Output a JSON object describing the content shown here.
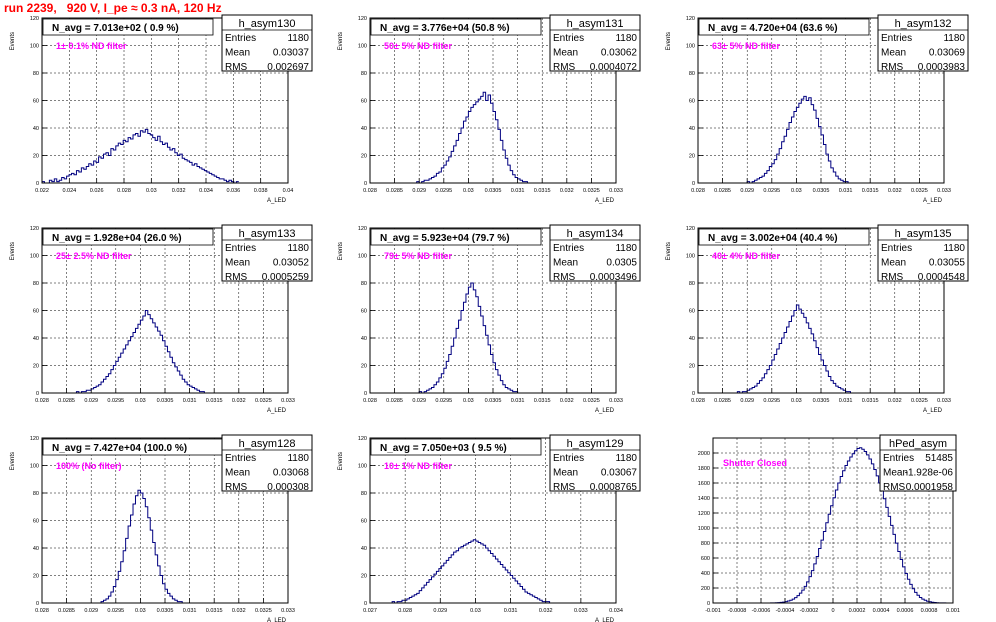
{
  "run_title": "run 2239,   920 V, I_pe ≈ 0.3 nA, 120 Hz",
  "colors": {
    "histogram": "#000080",
    "annotation": "#ff00ff",
    "title": "#ff0000",
    "grid": "#000000"
  },
  "stat_labels": {
    "entries": "Entries",
    "mean": "Mean",
    "rms": "RMS"
  },
  "chart_data": [
    {
      "type": "bar",
      "name": "h_asym130",
      "ylabel": "Events",
      "xlabel": "A_LED",
      "navg": "N_avg = 7.013e+02 ( 0.9 %)",
      "annotation": "1± 0.1% ND filter",
      "entries": "1180",
      "mean": "0.03037",
      "rms": "0.002697",
      "xlim": [
        0.022,
        0.04
      ],
      "xticks": [
        "0.022",
        "0.024",
        "0.026",
        "0.028",
        "0.03",
        "0.032",
        "0.034",
        "0.036",
        "0.038",
        "0.04"
      ],
      "ylim": [
        0,
        120
      ],
      "yticks": [
        "0",
        "20",
        "40",
        "60",
        "80",
        "100",
        "120"
      ],
      "bin_width": 0.00018,
      "values": [
        1,
        0,
        0,
        2,
        1,
        3,
        1,
        2,
        4,
        3,
        5,
        6,
        7,
        6,
        9,
        8,
        11,
        10,
        12,
        14,
        13,
        16,
        15,
        19,
        18,
        21,
        22,
        20,
        25,
        24,
        27,
        29,
        28,
        31,
        30,
        33,
        32,
        35,
        36,
        34,
        38,
        37,
        39,
        36,
        35,
        33,
        31,
        34,
        30,
        28,
        29,
        26,
        24,
        25,
        22,
        20,
        21,
        18,
        17,
        16,
        15,
        13,
        14,
        12,
        11,
        10,
        9,
        8,
        7,
        6,
        5,
        4,
        3,
        3,
        2,
        1,
        2,
        1,
        0,
        1
      ]
    },
    {
      "type": "bar",
      "name": "h_asym131",
      "ylabel": "Events",
      "xlabel": "A_LED",
      "navg": "N_avg = 3.776e+04 (50.8 %)",
      "annotation": "50± 5% ND filter",
      "entries": "1180",
      "mean": "0.03062",
      "rms": "0.0004072",
      "xlim": [
        0.028,
        0.033
      ],
      "xticks": [
        "0.028",
        "0.0285",
        "0.029",
        "0.0295",
        "0.03",
        "0.0305",
        "0.031",
        "0.0315",
        "0.032",
        "0.0325",
        "0.033"
      ],
      "ylim": [
        0,
        120
      ],
      "yticks": [
        "0",
        "20",
        "40",
        "60",
        "80",
        "100",
        "120"
      ],
      "bin_width": 5e-05,
      "values": [
        0,
        0,
        0,
        0,
        0,
        0,
        0,
        0,
        0,
        0,
        0,
        0,
        0,
        0,
        0,
        0,
        0,
        0,
        0,
        1,
        0,
        1,
        2,
        2,
        3,
        4,
        5,
        7,
        8,
        11,
        13,
        16,
        19,
        23,
        27,
        31,
        36,
        40,
        45,
        48,
        52,
        55,
        57,
        59,
        61,
        63,
        66,
        60,
        64,
        58,
        52,
        46,
        39,
        31,
        24,
        18,
        13,
        9,
        6,
        4,
        3,
        2,
        1,
        1,
        0,
        0,
        0,
        0,
        0,
        0,
        0,
        0,
        0,
        0,
        0,
        0,
        0,
        0,
        0,
        0,
        0,
        0,
        0,
        0,
        0,
        0,
        0,
        0,
        0,
        0,
        0,
        0,
        0,
        0,
        0,
        0,
        0,
        0,
        0,
        0
      ]
    },
    {
      "type": "bar",
      "name": "h_asym132",
      "ylabel": "Events",
      "xlabel": "A_LED",
      "navg": "N_avg = 4.720e+04 (63.6 %)",
      "annotation": "63± 5% ND filter",
      "entries": "1180",
      "mean": "0.03069",
      "rms": "0.0003983",
      "xlim": [
        0.028,
        0.033
      ],
      "xticks": [
        "0.028",
        "0.0285",
        "0.029",
        "0.0295",
        "0.03",
        "0.0305",
        "0.031",
        "0.0315",
        "0.032",
        "0.0325",
        "0.033"
      ],
      "ylim": [
        0,
        120
      ],
      "yticks": [
        "0",
        "20",
        "40",
        "60",
        "80",
        "100",
        "120"
      ],
      "bin_width": 5e-05,
      "values": [
        0,
        0,
        0,
        0,
        0,
        0,
        0,
        0,
        0,
        0,
        0,
        0,
        0,
        0,
        0,
        0,
        0,
        0,
        0,
        0,
        1,
        0,
        1,
        2,
        3,
        4,
        5,
        7,
        9,
        12,
        14,
        17,
        21,
        25,
        30,
        34,
        39,
        44,
        48,
        52,
        55,
        58,
        61,
        63,
        60,
        62,
        57,
        53,
        47,
        41,
        35,
        28,
        21,
        16,
        11,
        8,
        5,
        3,
        2,
        1,
        1,
        0,
        0,
        0,
        0,
        0,
        0,
        0,
        0,
        0,
        0,
        0,
        0,
        0,
        0,
        0,
        0,
        0,
        0,
        0,
        0,
        0,
        0,
        0,
        0,
        0,
        0,
        0,
        0,
        0,
        0,
        0,
        0,
        0,
        0,
        0,
        0,
        0,
        0,
        0
      ]
    },
    {
      "type": "bar",
      "name": "h_asym133",
      "ylabel": "Events",
      "xlabel": "A_LED",
      "navg": "N_avg = 1.928e+04 (26.0 %)",
      "annotation": "25± 2.5% ND filter",
      "entries": "1180",
      "mean": "0.03052",
      "rms": "0.0005259",
      "xlim": [
        0.028,
        0.033
      ],
      "xticks": [
        "0.028",
        "0.0285",
        "0.029",
        "0.0295",
        "0.03",
        "0.0305",
        "0.031",
        "0.0315",
        "0.032",
        "0.0325",
        "0.033"
      ],
      "ylim": [
        0,
        120
      ],
      "yticks": [
        "0",
        "20",
        "40",
        "60",
        "80",
        "100",
        "120"
      ],
      "bin_width": 5e-05,
      "values": [
        0,
        0,
        0,
        0,
        0,
        0,
        0,
        0,
        0,
        0,
        0,
        0,
        0,
        0,
        1,
        0,
        1,
        1,
        2,
        2,
        3,
        4,
        5,
        6,
        8,
        10,
        12,
        14,
        17,
        20,
        23,
        26,
        29,
        32,
        35,
        38,
        41,
        44,
        47,
        50,
        53,
        56,
        60,
        57,
        54,
        51,
        48,
        45,
        42,
        38,
        34,
        30,
        26,
        22,
        19,
        16,
        13,
        10,
        8,
        6,
        5,
        4,
        3,
        2,
        1,
        1,
        0,
        0,
        0,
        0,
        0,
        0,
        0,
        0,
        0,
        0,
        0,
        0,
        0,
        0,
        0,
        0,
        0,
        0,
        0,
        0,
        0,
        0,
        0,
        0,
        0,
        0,
        0,
        0,
        0,
        0,
        0,
        0,
        0,
        0
      ]
    },
    {
      "type": "bar",
      "name": "h_asym134",
      "ylabel": "Events",
      "xlabel": "A_LED",
      "navg": "N_avg = 5.923e+04 (79.7 %)",
      "annotation": "79± 5% ND filter",
      "entries": "1180",
      "mean": "0.0305",
      "rms": "0.0003496",
      "xlim": [
        0.028,
        0.033
      ],
      "xticks": [
        "0.028",
        "0.0285",
        "0.029",
        "0.0295",
        "0.03",
        "0.0305",
        "0.031",
        "0.0315",
        "0.032",
        "0.0325",
        "0.033"
      ],
      "ylim": [
        0,
        120
      ],
      "yticks": [
        "0",
        "20",
        "40",
        "60",
        "80",
        "100",
        "120"
      ],
      "bin_width": 5e-05,
      "values": [
        0,
        0,
        0,
        0,
        0,
        0,
        0,
        0,
        0,
        0,
        0,
        0,
        0,
        0,
        0,
        0,
        0,
        0,
        0,
        0,
        1,
        0,
        1,
        2,
        3,
        4,
        6,
        8,
        11,
        14,
        18,
        23,
        28,
        34,
        40,
        47,
        53,
        60,
        66,
        72,
        77,
        80,
        75,
        70,
        63,
        56,
        49,
        42,
        35,
        28,
        22,
        17,
        13,
        9,
        6,
        4,
        3,
        2,
        1,
        1,
        0,
        0,
        0,
        0,
        0,
        0,
        0,
        0,
        0,
        0,
        0,
        0,
        0,
        0,
        0,
        0,
        0,
        0,
        0,
        0,
        0,
        0,
        0,
        0,
        0,
        0,
        0,
        0,
        0,
        0,
        0,
        0,
        0,
        0,
        0,
        0,
        0,
        0,
        0,
        0
      ]
    },
    {
      "type": "bar",
      "name": "h_asym135",
      "ylabel": "Events",
      "xlabel": "A_LED",
      "navg": "N_avg = 3.002e+04 (40.4 %)",
      "annotation": "40± 4% ND filter",
      "entries": "1180",
      "mean": "0.03055",
      "rms": "0.0004548",
      "xlim": [
        0.028,
        0.033
      ],
      "xticks": [
        "0.028",
        "0.0285",
        "0.029",
        "0.0295",
        "0.03",
        "0.0305",
        "0.031",
        "0.0315",
        "0.032",
        "0.0325",
        "0.033"
      ],
      "ylim": [
        0,
        120
      ],
      "yticks": [
        "0",
        "20",
        "40",
        "60",
        "80",
        "100",
        "120"
      ],
      "bin_width": 5e-05,
      "values": [
        0,
        0,
        0,
        0,
        0,
        0,
        0,
        0,
        0,
        0,
        0,
        0,
        0,
        0,
        0,
        0,
        1,
        0,
        1,
        1,
        2,
        3,
        4,
        5,
        7,
        9,
        11,
        14,
        17,
        20,
        24,
        28,
        32,
        36,
        40,
        44,
        48,
        52,
        56,
        60,
        64,
        61,
        58,
        55,
        51,
        47,
        43,
        38,
        33,
        28,
        24,
        20,
        16,
        12,
        9,
        7,
        5,
        4,
        3,
        2,
        1,
        1,
        0,
        0,
        0,
        0,
        0,
        0,
        0,
        0,
        0,
        0,
        0,
        0,
        0,
        0,
        0,
        0,
        0,
        0,
        0,
        0,
        0,
        0,
        0,
        0,
        0,
        0,
        0,
        0,
        0,
        0,
        0,
        0,
        0,
        0,
        0,
        0,
        0,
        0
      ]
    },
    {
      "type": "bar",
      "name": "h_asym128",
      "ylabel": "Events",
      "xlabel": "A_LED",
      "navg": "N_avg = 7.427e+04 (100.0 %)",
      "annotation": "100% (No filter)",
      "entries": "1180",
      "mean": "0.03068",
      "rms": "0.000308",
      "xlim": [
        0.028,
        0.033
      ],
      "xticks": [
        "0.028",
        "0.0285",
        "0.029",
        "0.0295",
        "0.03",
        "0.0305",
        "0.031",
        "0.0315",
        "0.032",
        "0.0325",
        "0.033"
      ],
      "ylim": [
        0,
        120
      ],
      "yticks": [
        "0",
        "20",
        "40",
        "60",
        "80",
        "100",
        "120"
      ],
      "bin_width": 5e-05,
      "values": [
        0,
        0,
        0,
        0,
        0,
        0,
        0,
        0,
        0,
        0,
        0,
        0,
        0,
        0,
        0,
        0,
        0,
        0,
        0,
        0,
        0,
        0,
        0,
        0,
        1,
        2,
        3,
        5,
        8,
        12,
        17,
        23,
        30,
        38,
        47,
        56,
        64,
        72,
        78,
        82,
        80,
        76,
        70,
        62,
        53,
        44,
        35,
        27,
        20,
        14,
        10,
        7,
        5,
        3,
        2,
        1,
        1,
        0,
        0,
        0,
        0,
        0,
        0,
        0,
        0,
        0,
        0,
        0,
        0,
        0,
        0,
        0,
        0,
        0,
        0,
        0,
        0,
        0,
        0,
        0,
        0,
        0,
        0,
        0,
        0,
        0,
        0,
        0,
        0,
        0,
        0,
        0,
        0,
        0,
        0,
        0,
        0,
        0,
        0,
        0
      ]
    },
    {
      "type": "bar",
      "name": "h_asym129",
      "ylabel": "Events",
      "xlabel": "A_LED",
      "navg": "N_avg = 7.050e+03 ( 9.5 %)",
      "annotation": "10± 1% ND filter",
      "entries": "1180",
      "mean": "0.03067",
      "rms": "0.0008765",
      "xlim": [
        0.027,
        0.034
      ],
      "xticks": [
        "0.027",
        "0.028",
        "0.029",
        "0.03",
        "0.031",
        "0.032",
        "0.033",
        "0.034"
      ],
      "ylim": [
        0,
        120
      ],
      "yticks": [
        "0",
        "20",
        "40",
        "60",
        "80",
        "100",
        "120"
      ],
      "bin_width": 7e-05,
      "values": [
        0,
        0,
        0,
        0,
        0,
        0,
        0,
        0,
        0,
        1,
        0,
        1,
        1,
        2,
        2,
        3,
        4,
        5,
        6,
        7,
        9,
        11,
        13,
        15,
        17,
        19,
        21,
        23,
        25,
        27,
        29,
        31,
        33,
        35,
        37,
        38,
        40,
        41,
        42,
        43,
        44,
        45,
        46,
        45,
        44,
        43,
        42,
        40,
        38,
        36,
        34,
        32,
        30,
        28,
        26,
        24,
        22,
        20,
        18,
        16,
        14,
        12,
        10,
        8,
        7,
        6,
        5,
        4,
        3,
        2,
        1,
        1,
        1,
        0,
        0,
        0,
        0,
        0,
        0,
        0,
        0,
        0,
        0,
        0,
        0,
        0,
        0,
        0,
        0,
        0,
        0,
        0,
        0,
        0,
        0,
        0,
        0,
        0,
        0,
        0
      ]
    },
    {
      "type": "bar",
      "name": "hPed_asym",
      "ylabel": "",
      "xlabel": "",
      "navg": "",
      "annotation": "Shutter Closed",
      "entries": "51485",
      "mean": "-1.928e-06",
      "rms": "0.0001958",
      "xlim": [
        -0.001,
        0.001
      ],
      "xticks": [
        "-0.001",
        "-0.0008",
        "-0.0006",
        "-0.0004",
        "-0.0002",
        "0",
        "0.0002",
        "0.0004",
        "0.0006",
        "0.0008",
        "0.001"
      ],
      "ylim": [
        0,
        2200
      ],
      "yticks": [
        "0",
        "200",
        "400",
        "600",
        "800",
        "1000",
        "1200",
        "1400",
        "1600",
        "1800",
        "2000"
      ],
      "bin_width": 2e-05,
      "values": [
        0,
        0,
        0,
        0,
        0,
        0,
        0,
        0,
        0,
        0,
        0,
        0,
        0,
        0,
        0,
        0,
        0,
        0,
        0,
        0,
        0,
        0,
        0,
        0,
        1,
        2,
        3,
        5,
        8,
        12,
        18,
        26,
        37,
        52,
        72,
        98,
        131,
        172,
        222,
        282,
        352,
        432,
        522,
        620,
        726,
        838,
        954,
        1070,
        1184,
        1296,
        1404,
        1506,
        1600,
        1686,
        1764,
        1834,
        1894,
        1946,
        1990,
        2030,
        2060,
        2070,
        2050,
        2020,
        1975,
        1920,
        1855,
        1780,
        1695,
        1600,
        1500,
        1390,
        1275,
        1155,
        1035,
        915,
        798,
        686,
        580,
        482,
        394,
        316,
        248,
        190,
        142,
        104,
        74,
        52,
        36,
        24,
        16,
        10,
        6,
        4,
        2,
        1,
        1,
        0,
        0,
        0
      ]
    }
  ]
}
